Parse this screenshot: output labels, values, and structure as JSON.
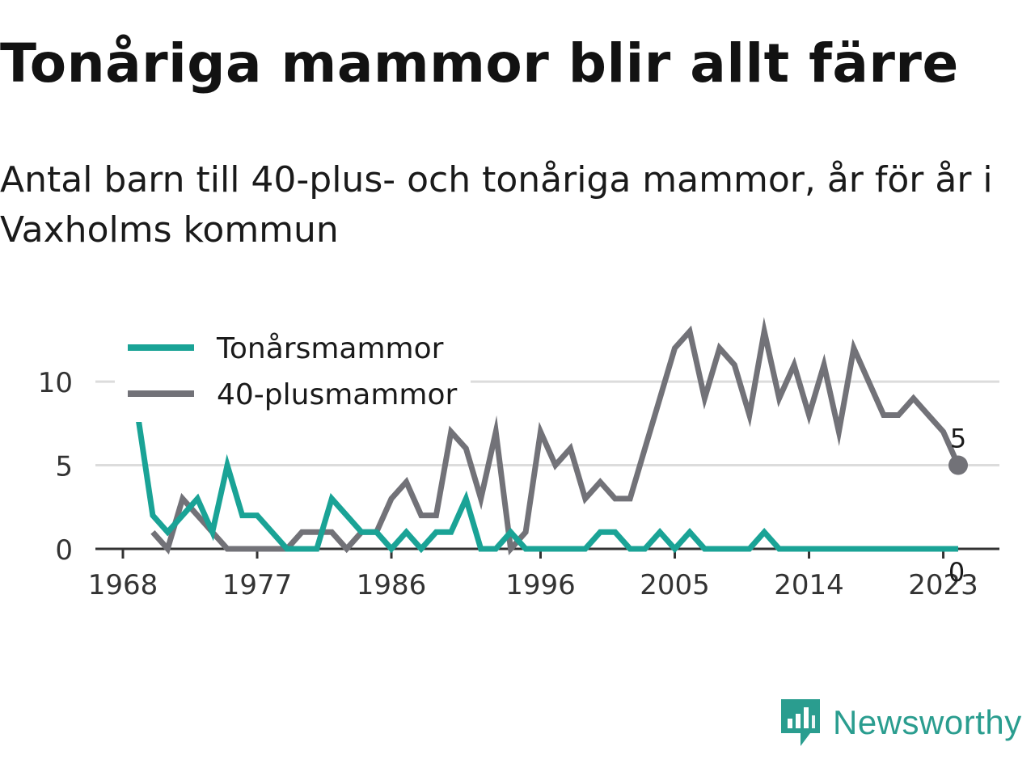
{
  "title": "Tonåriga mammor blir allt färre",
  "subtitle": "Antal barn till 40-plus- och tonåriga mammor, år för år i Vaxholms kommun",
  "brand": {
    "name": "Newsworthy",
    "icon": "newsworthy-logo-icon"
  },
  "colors": {
    "teen": "#1aa396",
    "forty_plus": "#727278",
    "grid": "#dcdcdc",
    "axis": "#333333"
  },
  "chart_data": {
    "type": "line",
    "title": "Tonåriga mammor blir allt färre",
    "xlabel": "",
    "ylabel": "",
    "xlim": [
      1968,
      2024
    ],
    "ylim": [
      0,
      13
    ],
    "x_ticks": [
      "1968",
      "1977",
      "1986",
      "1996",
      "2005",
      "2014",
      "2023"
    ],
    "y_ticks": [
      "0",
      "5",
      "10"
    ],
    "grid": true,
    "legend_position": "top-left",
    "series": [
      {
        "name": "Tonårsmammor",
        "color": "#1aa396",
        "points": [
          [
            1969,
            8
          ],
          [
            1970,
            2
          ],
          [
            1971,
            1
          ],
          [
            1972,
            2
          ],
          [
            1973,
            3
          ],
          [
            1974,
            1
          ],
          [
            1975,
            5
          ],
          [
            1976,
            2
          ],
          [
            1977,
            2
          ],
          [
            1978,
            1
          ],
          [
            1979,
            0
          ],
          [
            1980,
            0
          ],
          [
            1981,
            0
          ],
          [
            1982,
            3
          ],
          [
            1983,
            2
          ],
          [
            1984,
            1
          ],
          [
            1985,
            1
          ],
          [
            1986,
            0
          ],
          [
            1987,
            1
          ],
          [
            1988,
            0
          ],
          [
            1989,
            1
          ],
          [
            1990,
            1
          ],
          [
            1991,
            3
          ],
          [
            1992,
            0
          ],
          [
            1993,
            0
          ],
          [
            1994,
            1
          ],
          [
            1995,
            0
          ],
          [
            1996,
            0
          ],
          [
            1997,
            0
          ],
          [
            1998,
            0
          ],
          [
            1999,
            0
          ],
          [
            2000,
            1
          ],
          [
            2001,
            1
          ],
          [
            2002,
            0
          ],
          [
            2003,
            0
          ],
          [
            2004,
            1
          ],
          [
            2005,
            0
          ],
          [
            2006,
            1
          ],
          [
            2007,
            0
          ],
          [
            2008,
            0
          ],
          [
            2009,
            0
          ],
          [
            2010,
            0
          ],
          [
            2011,
            1
          ],
          [
            2012,
            0
          ],
          [
            2013,
            0
          ],
          [
            2014,
            0
          ],
          [
            2015,
            0
          ],
          [
            2016,
            0
          ],
          [
            2017,
            0
          ],
          [
            2018,
            0
          ],
          [
            2019,
            0
          ],
          [
            2020,
            0
          ],
          [
            2021,
            0
          ],
          [
            2022,
            0
          ],
          [
            2023,
            0
          ],
          [
            2024,
            0
          ]
        ],
        "end_label": "0"
      },
      {
        "name": "40-plusmammor",
        "color": "#727278",
        "points": [
          [
            1970,
            1
          ],
          [
            1971,
            0
          ],
          [
            1972,
            3
          ],
          [
            1973,
            2
          ],
          [
            1974,
            1
          ],
          [
            1975,
            0
          ],
          [
            1976,
            0
          ],
          [
            1977,
            0
          ],
          [
            1978,
            0
          ],
          [
            1979,
            0
          ],
          [
            1980,
            1
          ],
          [
            1981,
            1
          ],
          [
            1982,
            1
          ],
          [
            1983,
            0
          ],
          [
            1984,
            1
          ],
          [
            1985,
            1
          ],
          [
            1986,
            3
          ],
          [
            1987,
            4
          ],
          [
            1988,
            2
          ],
          [
            1989,
            2
          ],
          [
            1990,
            7
          ],
          [
            1991,
            6
          ],
          [
            1992,
            3
          ],
          [
            1993,
            7
          ],
          [
            1994,
            0
          ],
          [
            1995,
            1
          ],
          [
            1996,
            7
          ],
          [
            1997,
            5
          ],
          [
            1998,
            6
          ],
          [
            1999,
            3
          ],
          [
            2000,
            4
          ],
          [
            2001,
            3
          ],
          [
            2002,
            3
          ],
          [
            2003,
            6
          ],
          [
            2004,
            9
          ],
          [
            2005,
            12
          ],
          [
            2006,
            13
          ],
          [
            2007,
            9
          ],
          [
            2008,
            12
          ],
          [
            2009,
            11
          ],
          [
            2010,
            8
          ],
          [
            2011,
            13
          ],
          [
            2012,
            9
          ],
          [
            2013,
            11
          ],
          [
            2014,
            8
          ],
          [
            2015,
            11
          ],
          [
            2016,
            7
          ],
          [
            2017,
            12
          ],
          [
            2018,
            10
          ],
          [
            2019,
            8
          ],
          [
            2020,
            8
          ],
          [
            2021,
            9
          ],
          [
            2022,
            8
          ],
          [
            2023,
            7
          ],
          [
            2024,
            5
          ]
        ],
        "end_label": "5"
      }
    ]
  }
}
